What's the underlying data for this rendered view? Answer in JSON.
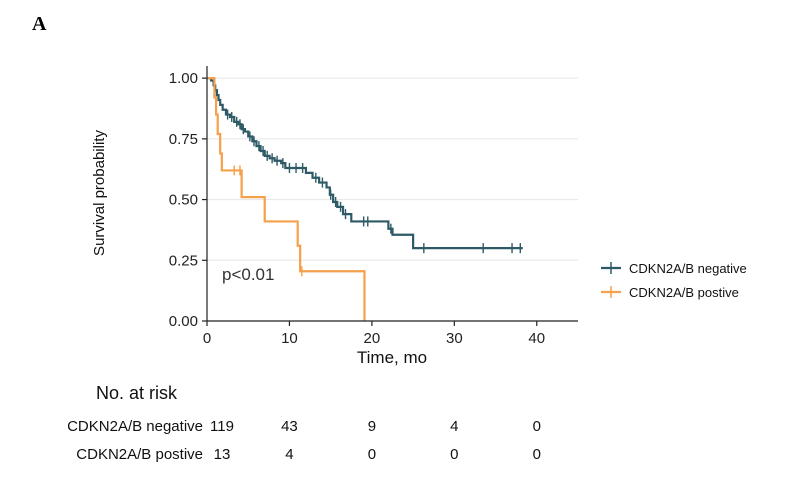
{
  "panel_label": "A",
  "chart_data": {
    "type": "line",
    "subtype": "kaplan-meier",
    "xlabel": "Time, mo",
    "ylabel": "Survival probability",
    "xlim": [
      0,
      45
    ],
    "ylim": [
      0,
      1.05
    ],
    "x_ticks": [
      0,
      10,
      20,
      30,
      40
    ],
    "y_ticks": [
      0.0,
      0.25,
      0.5,
      0.75,
      1.0
    ],
    "y_tick_labels": [
      "0.00",
      "0.25",
      "0.50",
      "0.75",
      "1.00"
    ],
    "grid": "horizontal",
    "legend_position": "right",
    "annotation": "p<0.01",
    "series": [
      {
        "name": "CDKN2A/B negative",
        "color": "#2d5a66",
        "steps": [
          [
            0,
            1.0
          ],
          [
            0.5,
            0.99
          ],
          [
            0.8,
            0.97
          ],
          [
            1.0,
            0.95
          ],
          [
            1.2,
            0.93
          ],
          [
            1.4,
            0.91
          ],
          [
            1.6,
            0.89
          ],
          [
            1.9,
            0.87
          ],
          [
            2.3,
            0.85
          ],
          [
            2.8,
            0.84
          ],
          [
            3.3,
            0.82
          ],
          [
            3.8,
            0.81
          ],
          [
            4.2,
            0.79
          ],
          [
            4.6,
            0.78
          ],
          [
            5.0,
            0.76
          ],
          [
            5.5,
            0.74
          ],
          [
            6.0,
            0.72
          ],
          [
            6.5,
            0.7
          ],
          [
            7.0,
            0.68
          ],
          [
            7.6,
            0.67
          ],
          [
            8.2,
            0.66
          ],
          [
            9.0,
            0.65
          ],
          [
            9.5,
            0.63
          ],
          [
            12.0,
            0.61
          ],
          [
            12.8,
            0.59
          ],
          [
            13.6,
            0.57
          ],
          [
            14.5,
            0.55
          ],
          [
            14.9,
            0.52
          ],
          [
            15.3,
            0.49
          ],
          [
            15.8,
            0.47
          ],
          [
            16.5,
            0.44
          ],
          [
            17.5,
            0.41
          ],
          [
            22.0,
            0.38
          ],
          [
            22.5,
            0.355
          ],
          [
            25.0,
            0.3
          ],
          [
            38.3,
            0.3
          ]
        ],
        "censors": [
          [
            2.5,
            0.85
          ],
          [
            3.0,
            0.84
          ],
          [
            3.6,
            0.82
          ],
          [
            4.0,
            0.81
          ],
          [
            4.4,
            0.79
          ],
          [
            5.2,
            0.76
          ],
          [
            5.7,
            0.74
          ],
          [
            6.3,
            0.72
          ],
          [
            6.8,
            0.7
          ],
          [
            7.3,
            0.68
          ],
          [
            7.9,
            0.67
          ],
          [
            8.5,
            0.66
          ],
          [
            9.2,
            0.65
          ],
          [
            10.0,
            0.63
          ],
          [
            10.8,
            0.63
          ],
          [
            11.6,
            0.63
          ],
          [
            13.2,
            0.59
          ],
          [
            14.0,
            0.57
          ],
          [
            15.0,
            0.52
          ],
          [
            15.6,
            0.49
          ],
          [
            16.2,
            0.47
          ],
          [
            16.8,
            0.44
          ],
          [
            19.0,
            0.41
          ],
          [
            19.5,
            0.41
          ],
          [
            22.3,
            0.38
          ],
          [
            26.3,
            0.3
          ],
          [
            33.5,
            0.3
          ],
          [
            37.0,
            0.3
          ],
          [
            38.0,
            0.3
          ]
        ]
      },
      {
        "name": "CDKN2A/B postive",
        "color": "#f5a04a",
        "steps": [
          [
            0,
            1.0
          ],
          [
            0.9,
            0.92
          ],
          [
            1.1,
            0.85
          ],
          [
            1.3,
            0.77
          ],
          [
            1.6,
            0.69
          ],
          [
            1.8,
            0.62
          ],
          [
            4.2,
            0.51
          ],
          [
            7.0,
            0.41
          ],
          [
            11.0,
            0.31
          ],
          [
            11.3,
            0.205
          ],
          [
            19.0,
            0.205
          ],
          [
            19.1,
            0.0
          ]
        ],
        "censors": [
          [
            3.3,
            0.62
          ],
          [
            4.0,
            0.62
          ],
          [
            11.5,
            0.205
          ]
        ]
      }
    ]
  },
  "risk_table": {
    "title": "No. at risk",
    "time_points": [
      0,
      10,
      20,
      30,
      40
    ],
    "rows": [
      {
        "label": "CDKN2A/B negative",
        "values": [
          "119",
          "43",
          "9",
          "4",
          "0"
        ]
      },
      {
        "label": "CDKN2A/B postive",
        "values": [
          "13",
          "4",
          "0",
          "0",
          "0"
        ]
      }
    ]
  }
}
